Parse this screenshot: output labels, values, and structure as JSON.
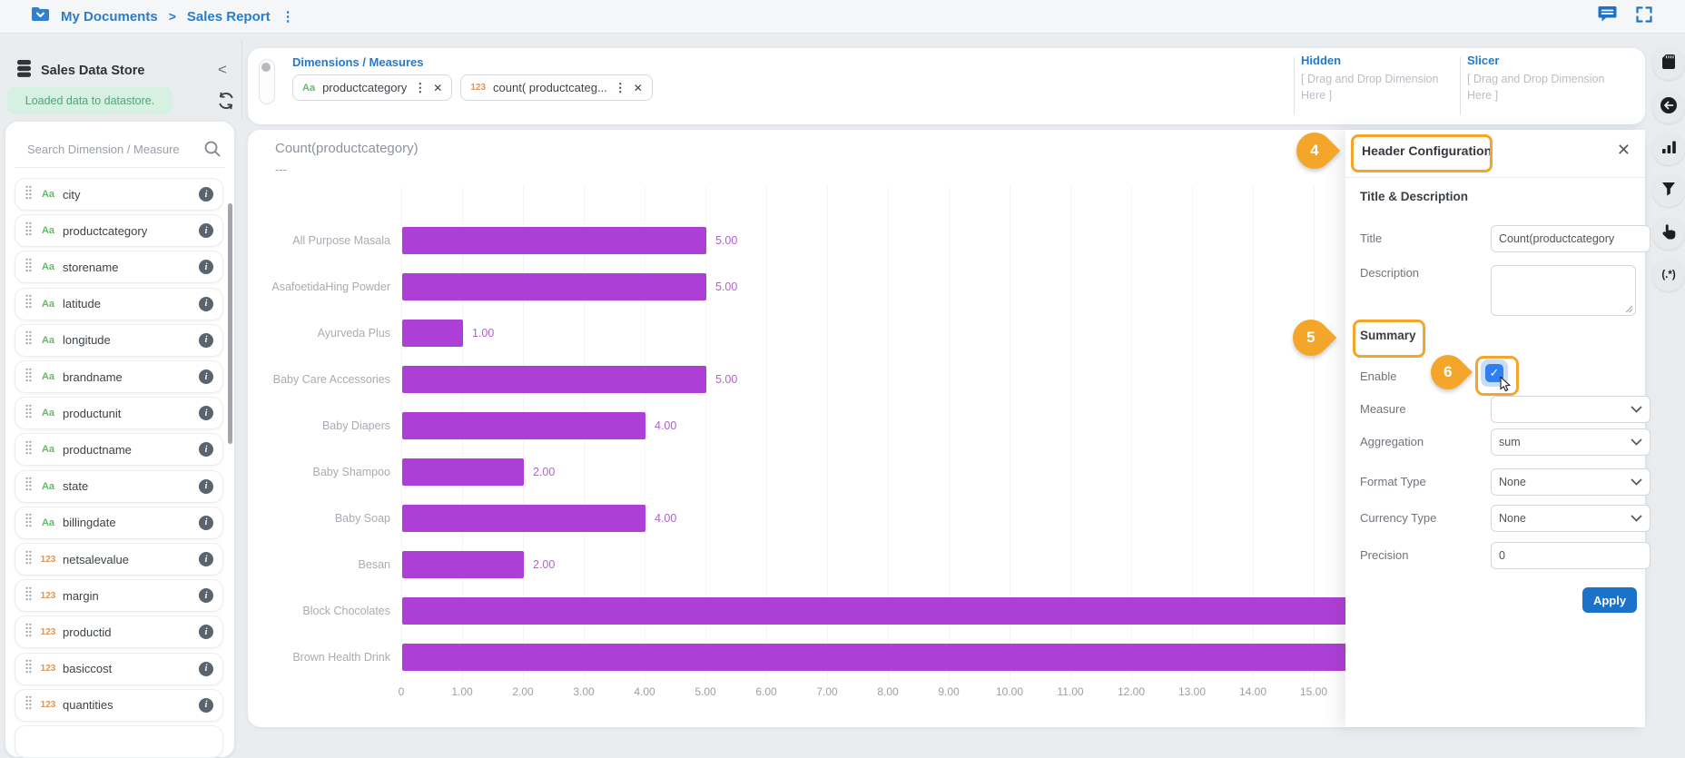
{
  "topbar": {
    "breadcrumb": {
      "root": "My Documents",
      "separator": ">",
      "current": "Sales Report",
      "menu_icon": "⋮"
    }
  },
  "sidebar": {
    "title": "Sales Data Store",
    "collapse_icon": "<",
    "toast": "Loaded data to datastore.",
    "search_placeholder": "Search Dimension / Measure",
    "fields": [
      {
        "name": "city",
        "badge": "Aa",
        "type": "text"
      },
      {
        "name": "productcategory",
        "badge": "Aa",
        "type": "text"
      },
      {
        "name": "storename",
        "badge": "Aa",
        "type": "text"
      },
      {
        "name": "latitude",
        "badge": "Aa",
        "type": "text"
      },
      {
        "name": "longitude",
        "badge": "Aa",
        "type": "text"
      },
      {
        "name": "brandname",
        "badge": "Aa",
        "type": "text"
      },
      {
        "name": "productunit",
        "badge": "Aa",
        "type": "text"
      },
      {
        "name": "productname",
        "badge": "Aa",
        "type": "text"
      },
      {
        "name": "state",
        "badge": "Aa",
        "type": "text"
      },
      {
        "name": "billingdate",
        "badge": "Aa",
        "type": "text"
      },
      {
        "name": "netsalevalue",
        "badge": "123",
        "type": "number"
      },
      {
        "name": "margin",
        "badge": "123",
        "type": "number"
      },
      {
        "name": "productid",
        "badge": "123",
        "type": "number"
      },
      {
        "name": "basiccost",
        "badge": "123",
        "type": "number"
      },
      {
        "name": "quantities",
        "badge": "123",
        "type": "number"
      }
    ]
  },
  "toolbar": {
    "dimensions_label": "Dimensions / Measures",
    "chips": [
      {
        "badge": "Aa",
        "type": "text",
        "label": "productcategory",
        "menu_icon": "⋮",
        "remove_icon": "✕"
      },
      {
        "badge": "123",
        "type": "number",
        "label": "count( productcateg...",
        "menu_icon": "⋮",
        "remove_icon": "✕"
      }
    ],
    "hidden_label": "Hidden",
    "hidden_placeholder": "[ Drag and Drop Dimension Here ]",
    "slicer_label": "Slicer",
    "slicer_placeholder": "[ Drag and Drop Dimension Here ]"
  },
  "chart_data": {
    "type": "bar",
    "orientation": "horizontal",
    "title": "Count(productcategory)",
    "subtitle": "---",
    "categories": [
      "All Purpose Masala",
      "AsafoetidaHing Powder",
      "Ayurveda Plus",
      "Baby Care Accessories",
      "Baby Diapers",
      "Baby Shampoo",
      "Baby Soap",
      "Besan",
      "Block Chocolates",
      "Brown Health Drink"
    ],
    "values": [
      5,
      5,
      1,
      5,
      4,
      2,
      4,
      2,
      16,
      16
    ],
    "value_labels": [
      "5.00",
      "5.00",
      "1.00",
      "5.00",
      "4.00",
      "2.00",
      "4.00",
      "2.00",
      "",
      ""
    ],
    "x_ticks": [
      "0",
      "1.00",
      "2.00",
      "3.00",
      "4.00",
      "5.00",
      "6.00",
      "7.00",
      "8.00",
      "9.00",
      "10.00",
      "11.00",
      "12.00",
      "13.00",
      "14.00",
      "15.00"
    ],
    "xlim": [
      0,
      16.5
    ],
    "grid": true,
    "legend": false,
    "bar_color": "#ae3fd6"
  },
  "panel": {
    "title": "Header Configuration",
    "close_icon": "✕",
    "section_title_description": "Title & Description",
    "title_label": "Title",
    "title_value": "Count(productcategory",
    "description_label": "Description",
    "description_value": "",
    "summary_label": "Summary",
    "enable_label": "Enable",
    "enable_checked": "✓",
    "measure_label": "Measure",
    "measure_value": "",
    "aggregation_label": "Aggregation",
    "aggregation_value": "sum",
    "format_type_label": "Format Type",
    "format_type_value": "None",
    "currency_type_label": "Currency Type",
    "currency_type_value": "None",
    "precision_label": "Precision",
    "precision_value": "0",
    "apply_label": "Apply"
  },
  "callouts": {
    "step4": "4",
    "step5": "5",
    "step6": "6"
  },
  "rail": {
    "regex_label": "(.*)"
  },
  "colors": {
    "accent_blue": "#2b7cc9",
    "bar_purple": "#ae3fd6",
    "callout_orange": "#f4a62a",
    "apply_blue": "#1a73c9",
    "toast_green_bg": "#d6f0e2",
    "toast_green_text": "#55a27d",
    "text_type_green": "#67b86b",
    "number_type_orange": "#e5924d"
  }
}
